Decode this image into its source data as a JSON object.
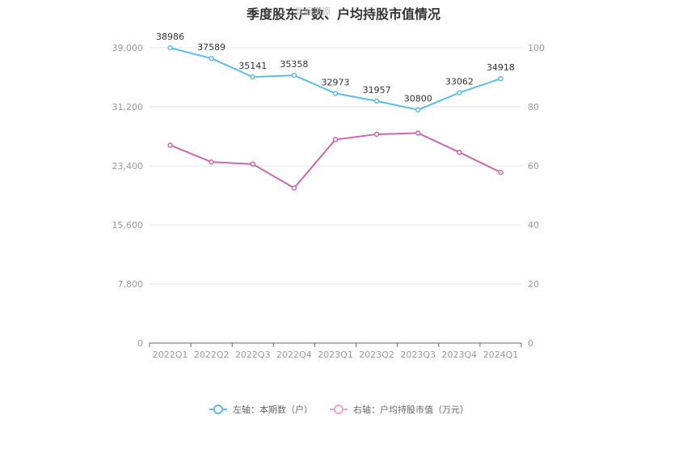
{
  "chart_data": {
    "type": "line",
    "title": "季度股东户数、户均持股市值情况",
    "watermark": "数据来源",
    "categories": [
      "2022Q1",
      "2022Q2",
      "2022Q3",
      "2022Q4",
      "2023Q1",
      "2023Q2",
      "2023Q3",
      "2023Q4",
      "2024Q1"
    ],
    "left_axis": {
      "ticks": [
        "0",
        "7,800",
        "15,600",
        "23,400",
        "31,200",
        "39,000"
      ],
      "ylim": [
        0,
        39000
      ]
    },
    "right_axis": {
      "ticks": [
        "0",
        "20",
        "40",
        "60",
        "80",
        "100"
      ],
      "ylim": [
        0,
        100
      ]
    },
    "series": [
      {
        "name": "左轴：本期数（户）",
        "axis": "left",
        "color": "#5bbde9",
        "values": [
          38986,
          37589,
          35141,
          35358,
          32973,
          31957,
          30800,
          33062,
          34918
        ],
        "labels": [
          "38986",
          "37589",
          "35141",
          "35358",
          "32973",
          "31957",
          "30800",
          "33062",
          "34918"
        ]
      },
      {
        "name": "右轴：户均持股市值（万元）",
        "axis": "right",
        "color": "#cc66aa",
        "values": [
          67.0,
          61.3,
          60.6,
          52.5,
          68.9,
          70.7,
          71.1,
          64.6,
          57.8
        ]
      }
    ],
    "grid": true,
    "legend_position": "bottom-center"
  }
}
